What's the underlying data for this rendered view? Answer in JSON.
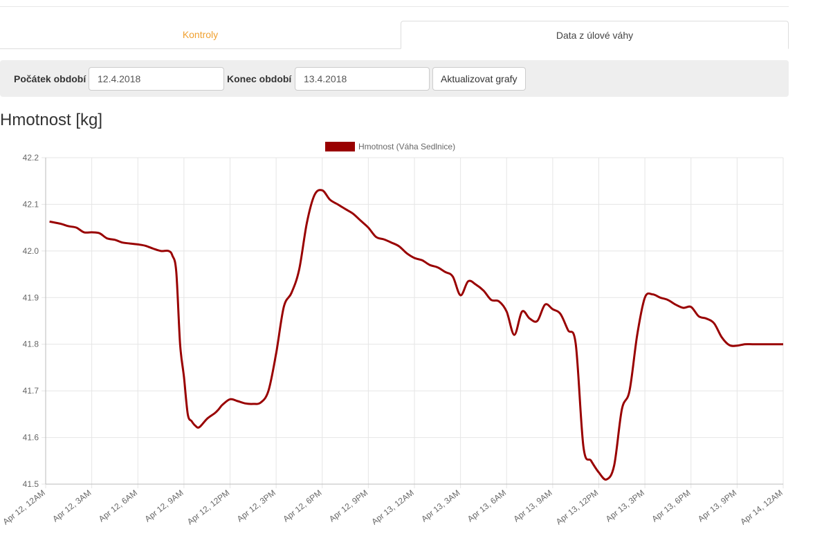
{
  "tabs": [
    {
      "label": "Kontroly",
      "active": false
    },
    {
      "label": "Data z úlové váhy",
      "active": true
    }
  ],
  "filter": {
    "start_label": "Počátek období",
    "start_value": "12.4.2018",
    "end_label": "Konec období",
    "end_value": "13.4.2018",
    "update_button": "Aktualizovat grafy"
  },
  "chart_title": "Hmotnost [kg]",
  "colors": {
    "accent": "#f0a030",
    "series": "#990000",
    "grid": "#e5e5e5"
  },
  "chart_data": {
    "type": "line",
    "legend": {
      "position": "top-center",
      "entries": [
        "Hmotnost (Váha Sedlnice)"
      ]
    },
    "grid": true,
    "ylim": [
      41.5,
      42.2
    ],
    "yticks": [
      "42.2",
      "42.1",
      "42.0",
      "41.9",
      "41.8",
      "41.7",
      "41.6",
      "41.5"
    ],
    "xlim": [
      0,
      48
    ],
    "xticks": [
      "Apr 12, 12AM",
      "Apr 12, 3AM",
      "Apr 12, 6AM",
      "Apr 12, 9AM",
      "Apr 12, 12PM",
      "Apr 12, 3PM",
      "Apr 12, 6PM",
      "Apr 12, 9PM",
      "Apr 13, 12AM",
      "Apr 13, 3AM",
      "Apr 13, 6AM",
      "Apr 13, 9AM",
      "Apr 13, 12PM",
      "Apr 13, 3PM",
      "Apr 13, 6PM",
      "Apr 13, 9PM",
      "Apr 14, 12AM"
    ],
    "series": [
      {
        "name": "Hmotnost (Váha Sedlnice)",
        "x": [
          0.25,
          1,
          1.5,
          2,
          2.5,
          3,
          3.5,
          4,
          4.5,
          5,
          5.5,
          6,
          6.5,
          7,
          7.5,
          8,
          8.25,
          8.5,
          8.75,
          9,
          9.25,
          9.5,
          9.75,
          10,
          10.5,
          11,
          11.25,
          11.5,
          12,
          12.5,
          13,
          13.5,
          14,
          14.5,
          15,
          15.5,
          16,
          16.5,
          17,
          17.5,
          18,
          18.5,
          19,
          19.25,
          19.5,
          20,
          20.5,
          21,
          21.5,
          22,
          22.5,
          23,
          23.5,
          24,
          24.5,
          25,
          25.5,
          26,
          26.5,
          27,
          27.5,
          28,
          28.5,
          29,
          29.5,
          30,
          30.5,
          31,
          31.5,
          32,
          32.5,
          33,
          33.5,
          34,
          34.5,
          35,
          35.5,
          36,
          36.5,
          37,
          37.5,
          38,
          38.5,
          39,
          39.5,
          40,
          40.5,
          41,
          41.5,
          42,
          42.5,
          43,
          43.5,
          44,
          44.5,
          45,
          45.5,
          46,
          46.5,
          47,
          47.5,
          48
        ],
        "y": [
          42.063,
          42.058,
          42.053,
          42.05,
          42.04,
          42.04,
          42.038,
          42.027,
          42.024,
          42.018,
          42.016,
          42.014,
          42.011,
          42.005,
          42.0,
          42.0,
          41.99,
          41.955,
          41.8,
          41.73,
          41.65,
          41.635,
          41.625,
          41.622,
          41.64,
          41.652,
          41.66,
          41.67,
          41.682,
          41.678,
          41.673,
          41.672,
          41.675,
          41.7,
          41.78,
          41.88,
          41.91,
          41.96,
          42.06,
          42.12,
          42.13,
          42.11,
          42.1,
          42.095,
          42.09,
          42.08,
          42.065,
          42.05,
          42.03,
          42.025,
          42.018,
          42.01,
          41.995,
          41.985,
          41.98,
          41.97,
          41.965,
          41.955,
          41.945,
          41.905,
          41.935,
          41.928,
          41.915,
          41.895,
          41.892,
          41.87,
          41.82,
          41.87,
          41.855,
          41.85,
          41.885,
          41.875,
          41.865,
          41.83,
          41.8,
          41.58,
          41.55,
          41.525,
          41.51,
          41.54,
          41.66,
          41.7,
          41.82,
          41.9,
          41.907,
          41.9,
          41.895,
          41.885,
          41.878,
          41.88,
          41.86,
          41.855,
          41.845,
          41.815,
          41.798,
          41.797,
          41.8,
          41.8,
          41.8,
          41.8,
          41.8,
          41.8
        ]
      }
    ]
  }
}
